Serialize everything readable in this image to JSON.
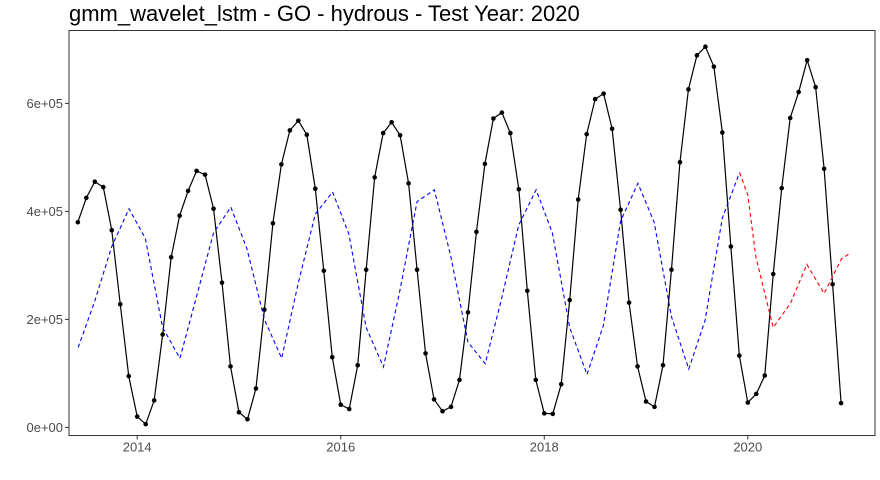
{
  "chart_data": {
    "type": "line",
    "title": "gmm_wavelet_lstm - GO - hydrous - Test Year: 2020",
    "xlabel": "",
    "ylabel": "",
    "xlim": [
      2013.33,
      2021.25
    ],
    "ylim": [
      -15000,
      735000
    ],
    "x_ticks": [
      {
        "value": 2014,
        "label": "2014"
      },
      {
        "value": 2016,
        "label": "2016"
      },
      {
        "value": 2018,
        "label": "2018"
      },
      {
        "value": 2020,
        "label": "2020"
      }
    ],
    "y_ticks": [
      {
        "value": 0,
        "label": "0e+00"
      },
      {
        "value": 200000,
        "label": "2e+05"
      },
      {
        "value": 400000,
        "label": "4e+05"
      },
      {
        "value": 600000,
        "label": "6e+05"
      }
    ],
    "grid": false,
    "legend": "none",
    "series": [
      {
        "style": "solid-points",
        "color": "#000000",
        "x_start": 2013.417,
        "x_step": 0.08333,
        "values": [
          380000,
          425000,
          455000,
          445000,
          365000,
          228000,
          95000,
          20000,
          6000,
          50000,
          172000,
          315000,
          392000,
          438000,
          475000,
          468000,
          405000,
          268000,
          113000,
          28000,
          15000,
          72000,
          218000,
          378000,
          487000,
          550000,
          568000,
          542000,
          442000,
          290000,
          130000,
          42000,
          34000,
          115000,
          292000,
          463000,
          545000,
          565000,
          541000,
          452000,
          292000,
          137000,
          52000,
          30000,
          38000,
          88000,
          213000,
          362000,
          488000,
          572000,
          583000,
          545000,
          441000,
          253000,
          88000,
          26000,
          25000,
          80000,
          236000,
          422000,
          543000,
          608000,
          618000,
          553000,
          403000,
          231000,
          113000,
          48000,
          38000,
          115000,
          292000,
          491000,
          626000,
          689000,
          705000,
          668000,
          546000,
          335000,
          133000,
          46000,
          62000,
          96000,
          284000,
          443000,
          573000,
          621000,
          680000,
          630000,
          479000,
          265000,
          45000
        ]
      },
      {
        "style": "dashed",
        "color": "#0000ff",
        "points": [
          [
            2013.42,
            148000
          ],
          [
            2013.58,
            232000
          ],
          [
            2013.75,
            335000
          ],
          [
            2013.92,
            405000
          ],
          [
            2014.08,
            350000
          ],
          [
            2014.25,
            185000
          ],
          [
            2014.42,
            128000
          ],
          [
            2014.58,
            240000
          ],
          [
            2014.75,
            360000
          ],
          [
            2014.92,
            408000
          ],
          [
            2015.08,
            330000
          ],
          [
            2015.25,
            200000
          ],
          [
            2015.42,
            128000
          ],
          [
            2015.58,
            265000
          ],
          [
            2015.75,
            395000
          ],
          [
            2015.92,
            436000
          ],
          [
            2016.08,
            358000
          ],
          [
            2016.25,
            185000
          ],
          [
            2016.42,
            112000
          ],
          [
            2016.58,
            252000
          ],
          [
            2016.75,
            418000
          ],
          [
            2016.92,
            440000
          ],
          [
            2017.08,
            318000
          ],
          [
            2017.25,
            158000
          ],
          [
            2017.42,
            118000
          ],
          [
            2017.58,
            238000
          ],
          [
            2017.75,
            375000
          ],
          [
            2017.92,
            440000
          ],
          [
            2018.08,
            360000
          ],
          [
            2018.25,
            185000
          ],
          [
            2018.42,
            98000
          ],
          [
            2018.58,
            188000
          ],
          [
            2018.75,
            382000
          ],
          [
            2018.92,
            452000
          ],
          [
            2019.08,
            380000
          ],
          [
            2019.25,
            205000
          ],
          [
            2019.42,
            108000
          ],
          [
            2019.58,
            198000
          ],
          [
            2019.75,
            388000
          ],
          [
            2019.92,
            472000
          ]
        ]
      },
      {
        "style": "dashed",
        "color": "#ff0000",
        "points": [
          [
            2019.92,
            472000
          ],
          [
            2020.0,
            430000
          ],
          [
            2020.08,
            315000
          ],
          [
            2020.25,
            185000
          ],
          [
            2020.42,
            230000
          ],
          [
            2020.58,
            302000
          ],
          [
            2020.75,
            248000
          ],
          [
            2020.92,
            312000
          ],
          [
            2021.0,
            322000
          ]
        ]
      }
    ]
  }
}
